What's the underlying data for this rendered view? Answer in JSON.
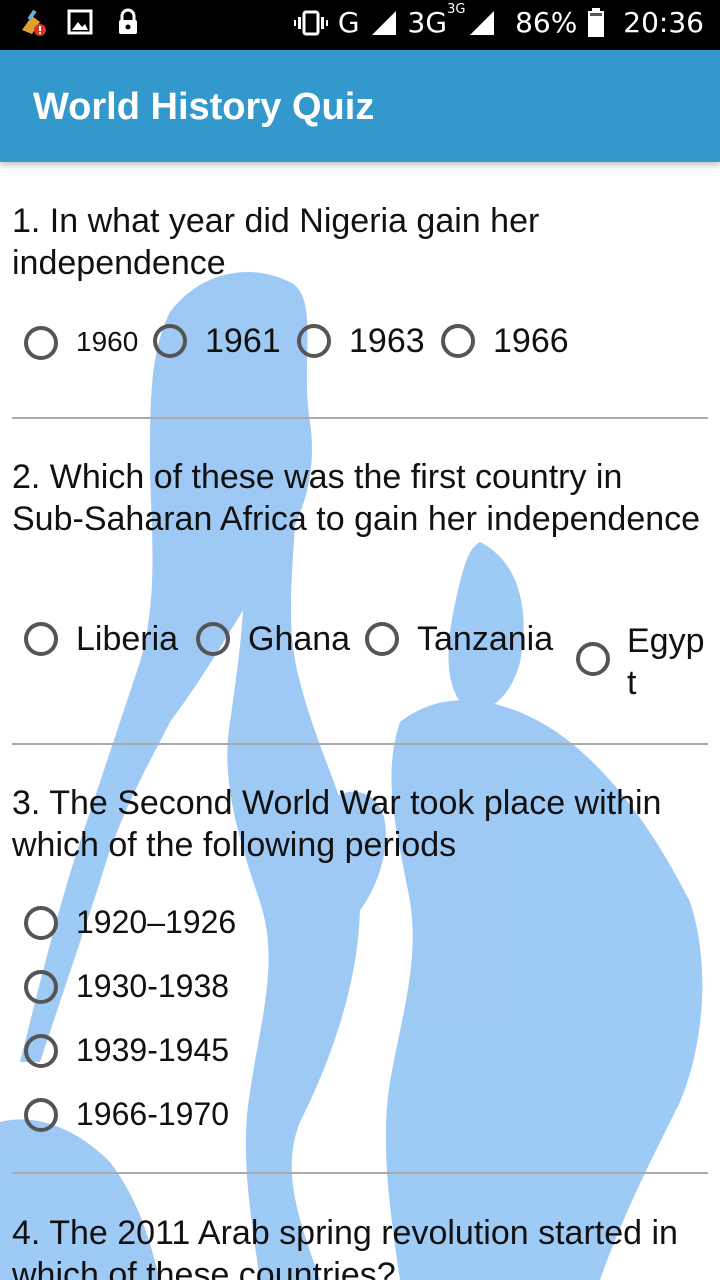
{
  "status_bar": {
    "battery": "86%",
    "time": "20:36",
    "network": "3G",
    "network_sup": "3G",
    "signal_g": "G",
    "icons": [
      "cleaner-icon",
      "image-icon",
      "lock-icon",
      "vibrate-icon",
      "signal-icon",
      "battery-icon"
    ]
  },
  "appbar": {
    "title": "World History Quiz",
    "color": "#3399cc"
  },
  "questions": [
    {
      "text": "1. In what year did Nigeria gain her independence",
      "options": [
        "1960",
        "1961",
        "1963",
        "1966"
      ]
    },
    {
      "text": "2. Which of these was the first country in Sub-Saharan Africa to gain her independence",
      "options": [
        "Liberia",
        "Ghana",
        "Tanzania",
        "Egypt"
      ]
    },
    {
      "text": "3. The Second World War took place within which of the following periods",
      "options": [
        "1920–1926",
        "1930-1938",
        "1939-1945",
        "1966-1970"
      ]
    },
    {
      "text": "4. The 2011 Arab spring revolution started in which of these countries?"
    }
  ]
}
